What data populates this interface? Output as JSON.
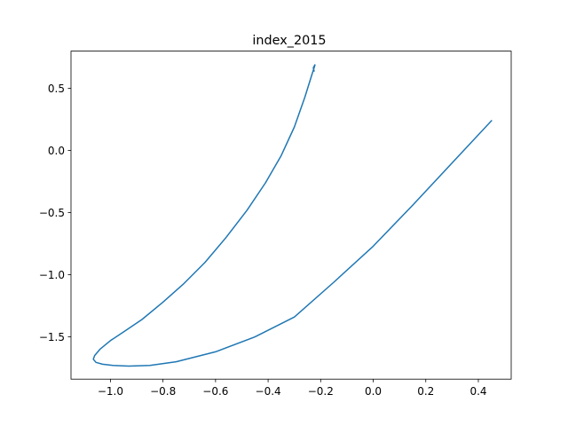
{
  "chart_data": {
    "type": "line",
    "title": "index_2015",
    "xlabel": "",
    "ylabel": "",
    "xlim": [
      -1.15,
      0.525
    ],
    "ylim": [
      -1.84,
      0.8
    ],
    "x_ticks": [
      -1.0,
      -0.8,
      -0.6,
      -0.4,
      -0.2,
      0.0,
      0.2,
      0.4
    ],
    "x_tick_labels": [
      "−1.0",
      "−0.8",
      "−0.6",
      "−0.4",
      "−0.2",
      "0.0",
      "0.2",
      "0.4"
    ],
    "y_ticks": [
      -1.5,
      -1.0,
      -0.5,
      0.0,
      0.5
    ],
    "y_tick_labels": [
      "−1.5",
      "−1.0",
      "−0.5",
      "0.0",
      "0.5"
    ],
    "grid": false,
    "legend": "none",
    "series": [
      {
        "color": "#1f77b4",
        "x": [
          0.45,
          0.3,
          0.15,
          0.0,
          -0.15,
          -0.3,
          -0.45,
          -0.6,
          -0.75,
          -0.85,
          -0.93,
          -0.99,
          -1.03,
          -1.055,
          -1.065,
          -1.06,
          -1.04,
          -1.0,
          -0.95,
          -0.88,
          -0.8,
          -0.72,
          -0.64,
          -0.56,
          -0.48,
          -0.41,
          -0.35,
          -0.3,
          -0.26,
          -0.235,
          -0.222,
          -0.222,
          -0.228,
          -0.225
        ],
        "y": [
          0.24,
          -0.1,
          -0.44,
          -0.77,
          -1.06,
          -1.34,
          -1.5,
          -1.62,
          -1.7,
          -1.73,
          -1.735,
          -1.73,
          -1.72,
          -1.705,
          -1.68,
          -1.65,
          -1.6,
          -1.53,
          -1.46,
          -1.36,
          -1.22,
          -1.07,
          -0.9,
          -0.7,
          -0.48,
          -0.26,
          -0.04,
          0.19,
          0.43,
          0.6,
          0.685,
          0.69,
          0.665,
          0.64
        ]
      }
    ]
  }
}
